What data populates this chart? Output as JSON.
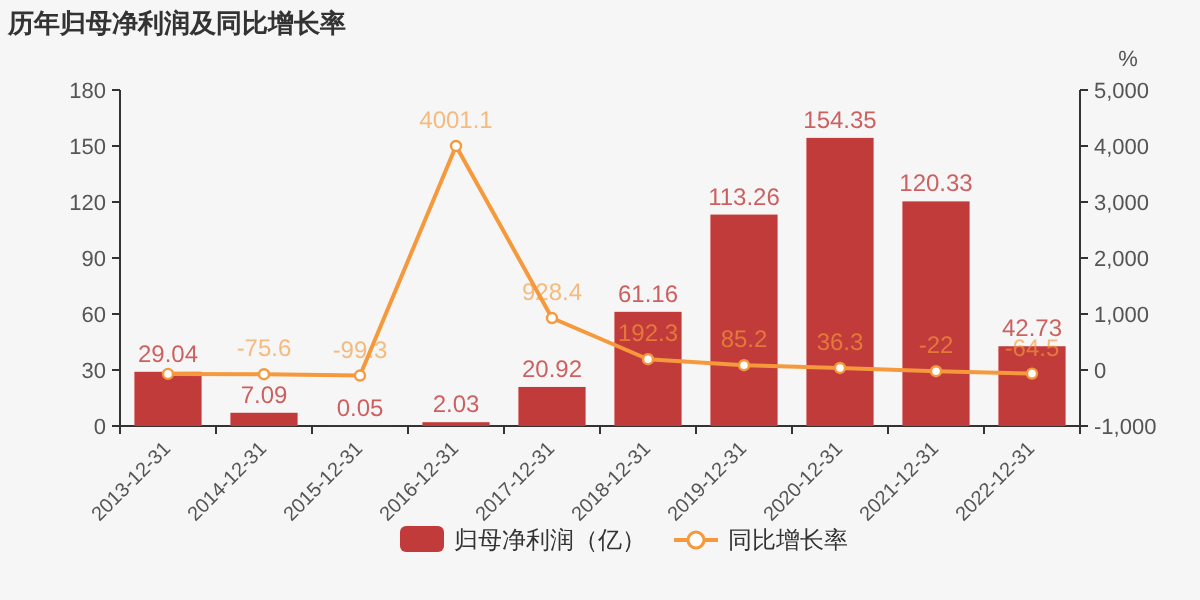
{
  "chart_data": {
    "type": "bar",
    "title": "历年归母净利润及同比增长率",
    "categories": [
      "2013-12-31",
      "2014-12-31",
      "2015-12-31",
      "2016-12-31",
      "2017-12-31",
      "2018-12-31",
      "2019-12-31",
      "2020-12-31",
      "2021-12-31",
      "2022-12-31"
    ],
    "series": [
      {
        "name": "归母净利润（亿）",
        "color": "#c23b3b",
        "values": [
          29.04,
          7.09,
          0.05,
          2.03,
          20.92,
          61.16,
          113.26,
          154.35,
          120.33,
          42.73
        ]
      },
      {
        "name": "同比增长率",
        "type": "line",
        "axis": "y2",
        "color": "#f5993c",
        "values": [
          -70,
          -75.6,
          -99.3,
          4001.1,
          928.4,
          192.3,
          85.2,
          36.3,
          -22,
          -64.5
        ],
        "value_labels": [
          null,
          "-75.6",
          "-99.3",
          "4001.1",
          "928.4",
          "192.3",
          "85.2",
          "36.3",
          "-22",
          "-64.5"
        ]
      }
    ],
    "data_labels": true,
    "ylim": [
      0,
      180
    ],
    "yticks": [
      0,
      30,
      60,
      90,
      120,
      150,
      180
    ],
    "y2label": "%",
    "y2lim": [
      -1000,
      5000
    ],
    "y2ticks": [
      {
        "value": -1000,
        "label": "-1,000"
      },
      0,
      {
        "value": 1000,
        "label": "1,000"
      },
      {
        "value": 2000,
        "label": "2,000"
      },
      {
        "value": 3000,
        "label": "3,000"
      },
      {
        "value": 4000,
        "label": "4,000"
      },
      {
        "value": 5000,
        "label": "5,000"
      }
    ],
    "marker": "circle",
    "legend": "bottom"
  }
}
